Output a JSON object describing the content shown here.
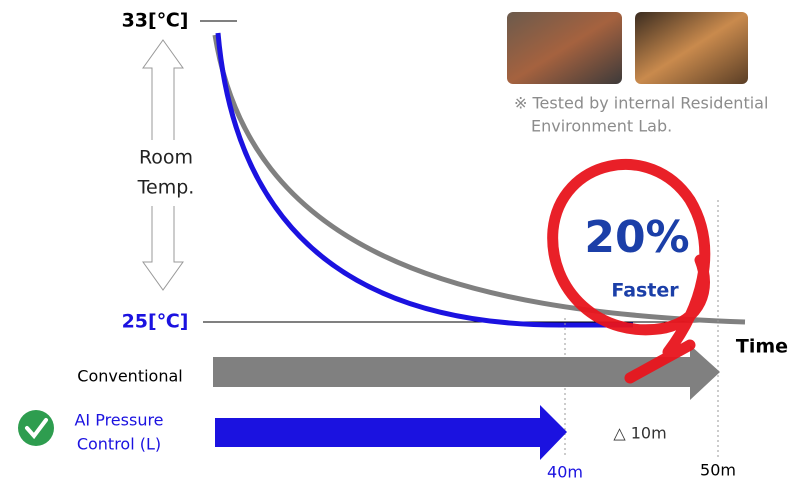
{
  "axis": {
    "top_label": "33[℃]",
    "bottom_label": "25[℃]",
    "y_title": [
      "Room",
      "Temp."
    ],
    "x_title": "Time"
  },
  "note": [
    "※ Tested by internal Residential",
    "Environment Lab."
  ],
  "highlight": {
    "value": "20%",
    "caption": "Faster"
  },
  "bars": [
    {
      "label": [
        "Conventional"
      ],
      "end_label": "50m"
    },
    {
      "label": [
        "AI Pressure",
        "Control (L)"
      ],
      "end_label": "40m"
    }
  ],
  "difference": "△ 10m"
}
